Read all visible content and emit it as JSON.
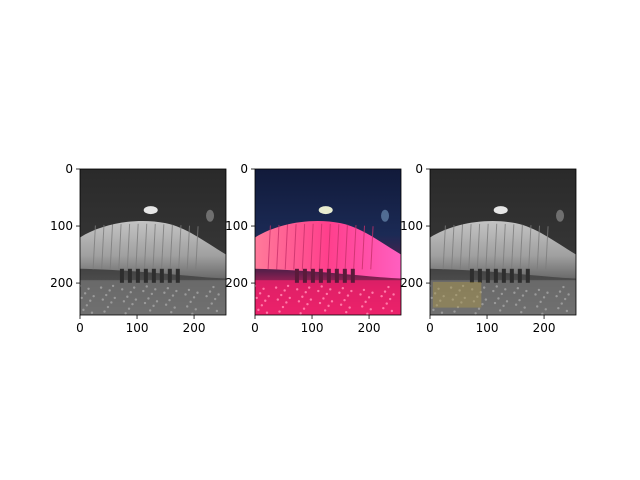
{
  "chart_data": [
    {
      "type": "image",
      "title": "",
      "image_content": "grayscale-photo",
      "xticks": [
        0,
        100,
        200
      ],
      "yticks": [
        0,
        100,
        200
      ],
      "xlim": [
        0,
        256
      ],
      "ylim": [
        256,
        0
      ],
      "colormap": "gray"
    },
    {
      "type": "image",
      "title": "",
      "image_content": "pink-overlay-photo",
      "xticks": [
        0,
        100,
        200
      ],
      "yticks": [
        0,
        100,
        200
      ],
      "xlim": [
        0,
        256
      ],
      "ylim": [
        256,
        0
      ],
      "overlay_color": "#ff2d7a"
    },
    {
      "type": "image",
      "title": "",
      "image_content": "grayscale-photo-with-yellow-patch",
      "xticks": [
        0,
        100,
        200
      ],
      "yticks": [
        0,
        100,
        200
      ],
      "xlim": [
        0,
        256
      ],
      "ylim": [
        256,
        0
      ],
      "patch_color": "#b09a4a"
    }
  ]
}
